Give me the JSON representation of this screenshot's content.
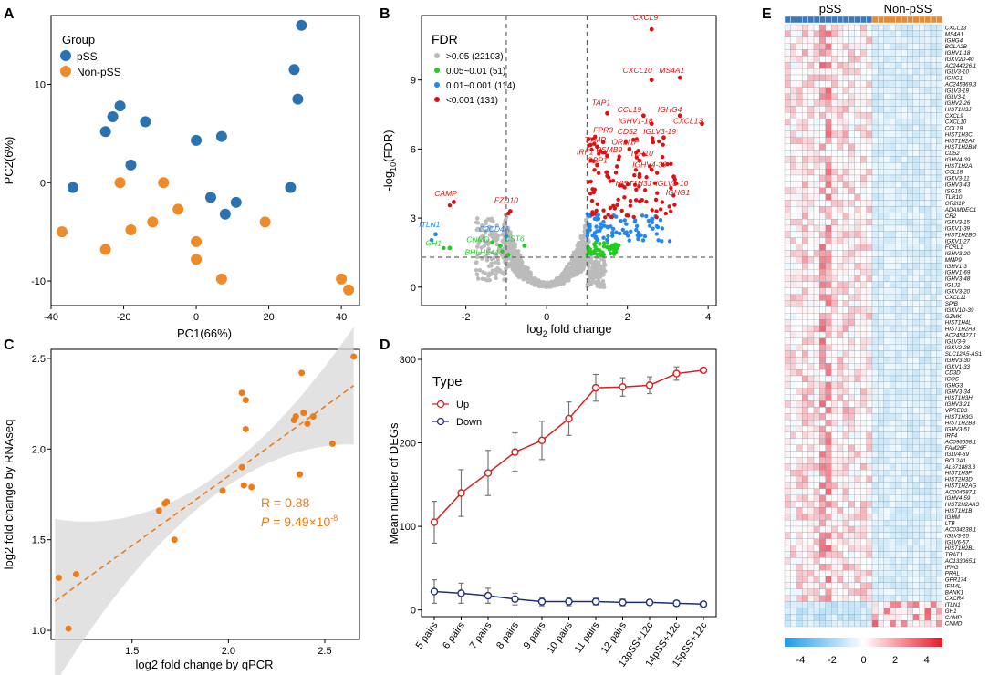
{
  "colors": {
    "pss": "#2b72b0",
    "non_pss": "#ee8a2a",
    "gray": "#bbbbbb",
    "green": "#22cc22",
    "blue": "#2288ee",
    "red": "#dd1111",
    "corr": "#ee7b16",
    "up": "#d62022",
    "down": "#1f2f7a",
    "heat_bar_pss": "#3a78b8",
    "heat_bar_non": "#e28a36"
  },
  "chart_data": [
    {
      "panel": "A",
      "type": "scatter",
      "xlabel": "PC1(66%)",
      "ylabel": "PC2(6%)",
      "xlim": [
        -40,
        45
      ],
      "ylim": [
        -12.5,
        17
      ],
      "xticks": [
        "-40",
        "-20",
        "0",
        "20",
        "40"
      ],
      "yticks": [
        "10",
        "0",
        "-10"
      ],
      "legend_title": "Group",
      "series": [
        {
          "name": "pSS",
          "points": [
            [
              29,
              16
            ],
            [
              27,
              11.5
            ],
            [
              28,
              8.5
            ],
            [
              -21,
              7.8
            ],
            [
              -23,
              6.7
            ],
            [
              -25,
              5.2
            ],
            [
              -14,
              6.2
            ],
            [
              0,
              4.3
            ],
            [
              7,
              4.7
            ],
            [
              -18,
              1.8
            ],
            [
              -34,
              -0.5
            ],
            [
              26,
              -0.5
            ],
            [
              4,
              -1.5
            ],
            [
              11,
              -2
            ],
            [
              8,
              -3.2
            ]
          ]
        },
        {
          "name": "Non-pSS",
          "points": [
            [
              -21,
              0
            ],
            [
              -9,
              0
            ],
            [
              -5,
              -2.7
            ],
            [
              -12,
              -4
            ],
            [
              -37,
              -5
            ],
            [
              -18,
              -4.8
            ],
            [
              19,
              -4
            ],
            [
              0,
              -6
            ],
            [
              -25,
              -6.8
            ],
            [
              0,
              -7.8
            ],
            [
              7,
              -9.8
            ],
            [
              40,
              -9.8
            ],
            [
              42,
              -10.9
            ]
          ]
        }
      ]
    },
    {
      "panel": "B",
      "type": "scatter",
      "xlabel": "log",
      "xlabel_sub": "2",
      "xlabel_tail": " fold change",
      "ylabel_pre": "-log",
      "ylabel_sub": "10",
      "ylabel_tail": "(FDR)",
      "xlim": [
        -3.1,
        4.2
      ],
      "ylim": [
        -0.8,
        11.8
      ],
      "xticks": [
        "-2",
        "0",
        "2",
        "4"
      ],
      "yticks": [
        "0",
        "3",
        "6",
        "9"
      ],
      "legend_title": "FDR",
      "legend": [
        ">0.05 (22103)",
        "0.05~0.01 (51)",
        "0.01~0.001 (114)",
        "<0.001 (131)"
      ],
      "labels": [
        {
          "text": "CXCL9",
          "x": 2.6,
          "y": 11.2,
          "c": "red",
          "l": [
            2.45,
            11.6
          ]
        },
        {
          "text": "CXCL10",
          "x": 2.6,
          "y": 9.0,
          "c": "red",
          "l": [
            2.25,
            9.3
          ]
        },
        {
          "text": "MS4A1",
          "x": 3.3,
          "y": 9.1,
          "c": "red",
          "l": [
            3.1,
            9.3
          ]
        },
        {
          "text": "TAP1",
          "x": 1.5,
          "y": 7.55,
          "c": "red",
          "l": [
            1.35,
            7.9
          ]
        },
        {
          "text": "CCL19",
          "x": 2.4,
          "y": 7.45,
          "c": "red",
          "l": [
            2.05,
            7.6
          ]
        },
        {
          "text": "IGHG4",
          "x": 3.3,
          "y": 7.45,
          "c": "red",
          "l": [
            3.05,
            7.6
          ]
        },
        {
          "text": "IGHV1-18",
          "x": 2.6,
          "y": 7.1,
          "c": "red",
          "l": [
            2.2,
            7.1
          ]
        },
        {
          "text": "CXCL13",
          "x": 3.85,
          "y": 7.1,
          "c": "red",
          "l": [
            3.5,
            7.1
          ]
        },
        {
          "text": "FPR3",
          "x": 1.4,
          "y": 6.3,
          "c": "red",
          "l": [
            1.4,
            6.7
          ]
        },
        {
          "text": "CD52",
          "x": 2.15,
          "y": 6.4,
          "c": "red",
          "l": [
            2.0,
            6.65
          ]
        },
        {
          "text": "IGLV3-19",
          "x": 2.9,
          "y": 6.5,
          "c": "red",
          "l": [
            2.8,
            6.65
          ]
        },
        {
          "text": "TYMP",
          "x": 1.25,
          "y": 6.1,
          "c": "red",
          "l": [
            1.2,
            6.3
          ]
        },
        {
          "text": "OR2I1P",
          "x": 2.05,
          "y": 6.0,
          "c": "red",
          "l": [
            1.95,
            6.2
          ]
        },
        {
          "text": "PSMB9",
          "x": 1.5,
          "y": 5.7,
          "c": "red",
          "l": [
            1.55,
            5.85
          ]
        },
        {
          "text": "IRF1",
          "x": 1.1,
          "y": 5.5,
          "c": "red",
          "l": [
            0.95,
            5.75
          ]
        },
        {
          "text": "TLR10",
          "x": 2.3,
          "y": 5.5,
          "c": "red",
          "l": [
            2.35,
            5.7
          ]
        },
        {
          "text": "GBP1",
          "x": 1.25,
          "y": 5.3,
          "c": "red",
          "l": [
            1.25,
            5.4
          ]
        },
        {
          "text": "IGHV4-39",
          "x": 2.6,
          "y": 5.1,
          "c": "red",
          "l": [
            2.55,
            5.2
          ]
        },
        {
          "text": "HIST1H3J",
          "x": 2.3,
          "y": 4.8,
          "c": "red",
          "l": [
            2.15,
            4.4
          ]
        },
        {
          "text": "IGLV3-10",
          "x": 3.15,
          "y": 4.8,
          "c": "red",
          "l": [
            3.1,
            4.4
          ]
        },
        {
          "text": "IGHG1",
          "x": 3.2,
          "y": 4.5,
          "c": "red",
          "l": [
            3.25,
            4.0
          ]
        },
        {
          "text": "CAMP",
          "x": -2.3,
          "y": 3.7,
          "c": "red",
          "l": [
            -2.5,
            3.95
          ]
        },
        {
          "text": "FZD10",
          "x": -0.9,
          "y": 3.3,
          "c": "red",
          "l": [
            -1.0,
            3.65
          ]
        },
        {
          "text": "ITLN1",
          "x": -2.75,
          "y": 2.3,
          "c": "blue",
          "l": [
            -2.9,
            2.6
          ]
        },
        {
          "text": "C2CD4A",
          "x": -1.0,
          "y": 2.2,
          "c": "blue",
          "l": [
            -1.3,
            2.4
          ]
        },
        {
          "text": "CNMD",
          "x": -1.15,
          "y": 1.8,
          "c": "green",
          "l": [
            -1.7,
            1.95
          ]
        },
        {
          "text": "CST6",
          "x": -0.55,
          "y": 1.8,
          "c": "green",
          "l": [
            -0.8,
            2.0
          ]
        },
        {
          "text": "GH1",
          "x": -2.4,
          "y": 1.7,
          "c": "green",
          "l": [
            -2.8,
            1.8
          ]
        },
        {
          "text": "BHLHE41",
          "x": -0.95,
          "y": 1.4,
          "c": "green",
          "l": [
            -1.6,
            1.4
          ]
        }
      ]
    },
    {
      "panel": "C",
      "type": "scatter",
      "xlabel": "log2 fold change by qPCR",
      "ylabel": "log2 fold change by RNAseq",
      "xlim": [
        1.08,
        2.68
      ],
      "ylim": [
        0.95,
        2.55
      ],
      "xticks": [
        "1.5",
        "2.0",
        "2.5"
      ],
      "yticks": [
        "1.0",
        "1.5",
        "2.0",
        "2.5"
      ],
      "r_text": "R = 0.88",
      "p_label": "P",
      "p_text": " = 9.49×10",
      "p_exp": "-8",
      "fit": {
        "x0": 1.1,
        "y0": 1.16,
        "x1": 2.65,
        "y1": 2.35
      },
      "points": [
        [
          1.12,
          1.29
        ],
        [
          1.17,
          1.01
        ],
        [
          1.21,
          1.31
        ],
        [
          1.64,
          1.66
        ],
        [
          1.67,
          1.7
        ],
        [
          1.68,
          1.71
        ],
        [
          1.72,
          1.5
        ],
        [
          1.97,
          1.77
        ],
        [
          2.07,
          2.31
        ],
        [
          2.07,
          1.9
        ],
        [
          2.08,
          1.8
        ],
        [
          2.09,
          2.27
        ],
        [
          2.09,
          2.11
        ],
        [
          2.12,
          1.79
        ],
        [
          2.34,
          2.16
        ],
        [
          2.35,
          2.18
        ],
        [
          2.38,
          2.42
        ],
        [
          2.37,
          1.86
        ],
        [
          2.39,
          2.2
        ],
        [
          2.41,
          2.14
        ],
        [
          2.44,
          2.18
        ],
        [
          2.54,
          2.03
        ],
        [
          2.65,
          2.51
        ]
      ]
    },
    {
      "panel": "D",
      "type": "line",
      "ylabel": "Mean number of DEGs",
      "legend_title": "Type",
      "categories": [
        "5 pairs",
        "6 pairs",
        "7 pairs",
        "8 pairs",
        "9 pairs",
        "10 pairs",
        "11 pairs",
        "12 pairs",
        "13pSS+12c",
        "14pSS+12c",
        "15pSS+12c"
      ],
      "ylim": [
        0,
        300
      ],
      "yticks": [
        "0",
        "100",
        "200",
        "300"
      ],
      "series": [
        {
          "name": "Up",
          "values": [
            105,
            140,
            164,
            189,
            203,
            229,
            266,
            267,
            269,
            283,
            287
          ],
          "err": [
            25,
            28,
            27,
            23,
            23,
            20,
            16,
            11,
            10,
            8,
            3
          ]
        },
        {
          "name": "Down",
          "values": [
            22,
            20,
            17,
            13,
            10,
            10,
            10,
            9,
            9,
            8,
            7
          ],
          "err": [
            14,
            12,
            9,
            7,
            5,
            5,
            4,
            4,
            3,
            3,
            2
          ]
        }
      ]
    },
    {
      "panel": "E",
      "type": "heatmap",
      "col_groups": [
        "pSS",
        "Non-pSS"
      ],
      "n_pss": 15,
      "n_non": 12,
      "genes": [
        "CXCL13",
        "MS4A1",
        "IGHG4",
        "BOLA2B",
        "IGHV1-18",
        "IGKV2D-40",
        "AC244226.1",
        "IGLV3-10",
        "IGHG1",
        "AC245369.3",
        "IGLV3-19",
        "IGLV3-1",
        "IGHV2-26",
        "HIST1H3J",
        "CXCL9",
        "CXCL10",
        "CCL19",
        "HIST1H3C",
        "HIST1H2AJ",
        "HIST1H2BM",
        "CD52",
        "IGHV4-39",
        "HIST1H2AI",
        "CCL18",
        "IGKV3-11",
        "IGHV3-43",
        "ISG15",
        "TLR10",
        "OR2I1P",
        "ADAMDEC1",
        "CR2",
        "IGKV3-15",
        "IGKV1-39",
        "HIST1H2BO",
        "IGKV1-27",
        "FCRL1",
        "IGHV3-20",
        "MMP9",
        "IGHV1-3",
        "IGHV1-69",
        "IGHV3-48",
        "IGLJ2",
        "IGKV3-20",
        "CXCL11",
        "SPIB",
        "IGKV1D-39",
        "GZMK",
        "HIST1H4L",
        "HIST1H2AB",
        "AC245427.1",
        "IGLV3-9",
        "IGKV2-28",
        "SLC12A5-AS1",
        "IGHV3-30",
        "IGKV1-33",
        "CD3D",
        "ICOS",
        "IGHG3",
        "IGHV3-34",
        "HIST1H3H",
        "IGHV3-21",
        "VPREB3",
        "HIST1H3G",
        "HIST1H2BB",
        "IGHV3-51",
        "IRF4",
        "AC096558.1",
        "FAM26F",
        "IGLV4-69",
        "BCL2A1",
        "AL671883.3",
        "HIST1H3F",
        "HIST2H3D",
        "HIST1H2AG",
        "AC004687.1",
        "IGHV4-59",
        "HIST2H2AA3",
        "HIST1H1B",
        "IGHM",
        "LTB",
        "AC034238.1",
        "IGLV3-25",
        "IGLV6-57",
        "HIST1H2BL",
        "TRAT1",
        "AC133065.1",
        "IFNG",
        "PRAL",
        "GPR174",
        "IFI44L",
        "BANK1",
        "CXCR4",
        "ITLN1",
        "GH1",
        "CAMP",
        "CNMD"
      ],
      "scale_ticks": [
        "-4",
        "-2",
        "0",
        "2",
        "4"
      ],
      "scale_range": [
        -5,
        5
      ]
    }
  ]
}
